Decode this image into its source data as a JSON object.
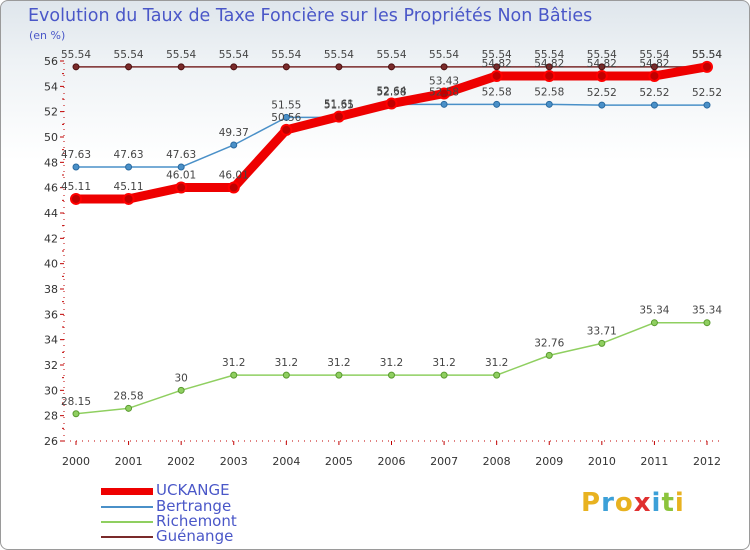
{
  "header": {
    "title": "Evolution du Taux de Taxe Foncière sur les Propriétés Non Bâties",
    "unit": "(en %)"
  },
  "logo": {
    "text": "Proxiti",
    "letters": [
      {
        "ch": "P",
        "color": "#e8b220"
      },
      {
        "ch": "r",
        "color": "#3ca0d8"
      },
      {
        "ch": "o",
        "color": "#e8b220"
      },
      {
        "ch": "x",
        "color": "#e03030"
      },
      {
        "ch": "i",
        "color": "#3ca0d8"
      },
      {
        "ch": "t",
        "color": "#8cc43c"
      },
      {
        "ch": "i",
        "color": "#e8b220"
      }
    ]
  },
  "chart_data": {
    "type": "line",
    "title": "Evolution du Taux de Taxe Foncière sur les Propriétés Non Bâties",
    "ylabel": "(en %)",
    "xlabel": "",
    "categories": [
      "2000",
      "2001",
      "2002",
      "2003",
      "2004",
      "2005",
      "2006",
      "2007",
      "2008",
      "2009",
      "2010",
      "2011",
      "2012"
    ],
    "ylim": [
      26,
      56
    ],
    "yticks": [
      26,
      28,
      30,
      32,
      34,
      36,
      38,
      40,
      42,
      44,
      46,
      48,
      50,
      52,
      54,
      56
    ],
    "grid": false,
    "legend_position": "bottom-left",
    "series": [
      {
        "name": "Guénange",
        "color": "#7a2a2a",
        "values": [
          55.54,
          55.54,
          55.54,
          55.54,
          55.54,
          55.54,
          55.54,
          55.54,
          55.54,
          55.54,
          55.54,
          55.54,
          55.54
        ],
        "labels": [
          "55.54",
          "55.54",
          "55.54",
          "55.54",
          "55.54",
          "55.54",
          "55.54",
          "55.54",
          "55.54",
          "55.54",
          "55.54",
          "55.54",
          "55.54"
        ]
      },
      {
        "name": "Bertrange",
        "color": "#4a90c8",
        "values": [
          47.63,
          47.63,
          47.63,
          49.37,
          51.55,
          51.55,
          52.58,
          52.58,
          52.58,
          52.58,
          52.52,
          52.52,
          52.52
        ],
        "labels": [
          "47.63",
          "47.63",
          "47.63",
          "49.37",
          "51.55",
          "51.55",
          "52.58",
          "52.58",
          "52.58",
          "52.58",
          "52.52",
          "52.52",
          "52.52"
        ]
      },
      {
        "name": "Richemont",
        "color": "#8fcf60",
        "values": [
          28.15,
          28.58,
          30,
          31.2,
          31.2,
          31.2,
          31.2,
          31.2,
          31.2,
          32.76,
          33.71,
          35.34,
          35.34
        ],
        "labels": [
          "28.15",
          "28.58",
          "30",
          "31.2",
          "31.2",
          "31.2",
          "31.2",
          "31.2",
          "31.2",
          "32.76",
          "33.71",
          "35.34",
          "35.34"
        ]
      },
      {
        "name": "UCKANGE",
        "color": "#ee0000",
        "values": [
          45.11,
          45.11,
          46.01,
          46.01,
          50.56,
          51.61,
          52.64,
          53.43,
          54.82,
          54.82,
          54.82,
          54.82,
          55.54
        ],
        "labels": [
          "45.11",
          "45.11",
          "46.01",
          "46.01",
          "50.56",
          "51.61",
          "52.64",
          "53.43",
          "54.82",
          "54.82",
          "54.82",
          "54.82",
          "55.54"
        ]
      }
    ]
  },
  "legend": [
    {
      "label": "UCKANGE",
      "color": "#ee0000"
    },
    {
      "label": "Bertrange",
      "color": "#4a90c8"
    },
    {
      "label": "Richemont",
      "color": "#8fcf60"
    },
    {
      "label": "Guénange",
      "color": "#7a2a2a"
    }
  ]
}
